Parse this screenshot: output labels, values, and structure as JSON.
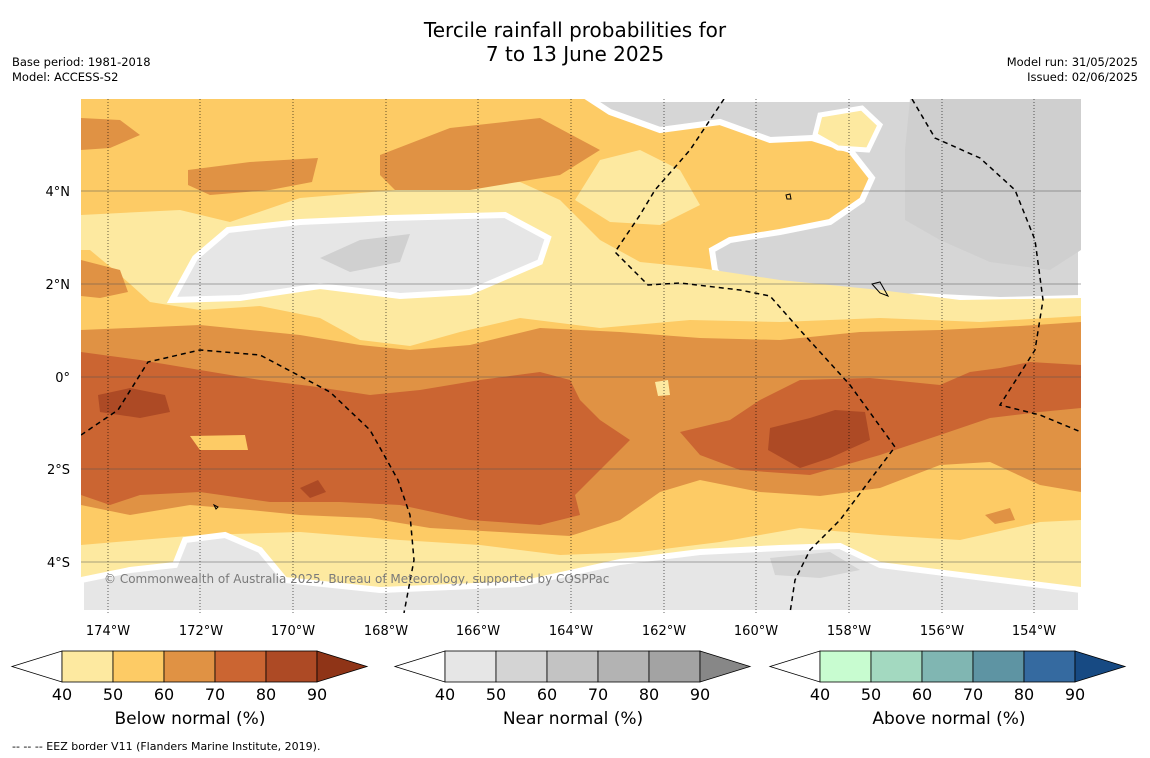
{
  "header": {
    "title_line1": "Tercile rainfall probabilities for",
    "title_line2": "7 to 13 June 2025",
    "base_period": "Base period: 1981-2018",
    "model": "Model: ACCESS-S2",
    "model_run": "Model run: 31/05/2025",
    "issued": "Issued: 02/06/2025"
  },
  "map": {
    "lon_labels": [
      "174°W",
      "172°W",
      "170°W",
      "168°W",
      "166°W",
      "164°W",
      "162°W",
      "160°W",
      "158°W",
      "156°W",
      "154°W"
    ],
    "lat_labels": [
      "4°N",
      "2°N",
      "0°",
      "2°S",
      "4°S"
    ],
    "copyright": "© Commonwealth of Australia 2025, Bureau of Meteorology, supported by COSPPac",
    "colors": {
      "below_50": "#fde9a0",
      "below_60": "#fdcb65",
      "below_70": "#e09244",
      "below_80": "#cb6532",
      "below_90": "#ad4a25",
      "near_40": "#e5e5e5",
      "near_50": "#d6d6d6",
      "near_60": "#c6c6c6"
    }
  },
  "colorbars": [
    {
      "title": "Below normal (%)",
      "ticks": [
        "40",
        "50",
        "60",
        "70",
        "80",
        "90"
      ],
      "colors": [
        "#ffffff",
        "#fde9a0",
        "#fdcb65",
        "#e09244",
        "#cb6532",
        "#ad4a25",
        "#8f3417"
      ]
    },
    {
      "title": "Near normal (%)",
      "ticks": [
        "40",
        "50",
        "60",
        "70",
        "80",
        "90"
      ],
      "colors": [
        "#ffffff",
        "#e6e6e6",
        "#d4d4d4",
        "#c3c3c3",
        "#b3b3b3",
        "#a3a3a3",
        "#878787"
      ]
    },
    {
      "title": "Above normal (%)",
      "ticks": [
        "40",
        "50",
        "60",
        "70",
        "80",
        "90"
      ],
      "colors": [
        "#ffffff",
        "#c8fcd0",
        "#a3d9c0",
        "#80b6b2",
        "#5e94a3",
        "#356aa0",
        "#174a83"
      ]
    }
  ],
  "footer": {
    "legend_note": "--  --  -- EEZ border V11 (Flanders Marine Institute, 2019)."
  }
}
